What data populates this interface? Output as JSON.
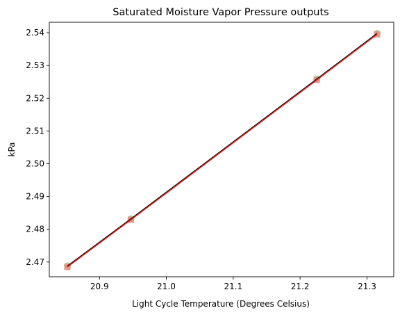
{
  "chart_data": {
    "type": "scatter",
    "title": "Saturated Moisture Vapor Pressure outputs",
    "xlabel": "Light Cycle Temperature (Degrees Celsius)",
    "ylabel": "kPa",
    "xlim": [
      20.825,
      21.34
    ],
    "ylim": [
      2.4655,
      2.5432
    ],
    "xticks": [
      "20.9",
      "21.0",
      "21.1",
      "21.2",
      "21.3"
    ],
    "yticks": [
      "2.47",
      "2.48",
      "2.49",
      "2.50",
      "2.51",
      "2.52",
      "2.53",
      "2.54"
    ],
    "grid": false,
    "series": [
      {
        "kind": "scatter",
        "marker": "circle",
        "color": "#90d890",
        "x": [
          20.852,
          20.947,
          21.225,
          21.315
        ],
        "y": [
          2.4688,
          2.4832,
          2.5259,
          2.5398
        ]
      },
      {
        "kind": "scatter",
        "marker": "square",
        "color": "#f08a80",
        "x": [
          20.852,
          20.947,
          21.225,
          21.315
        ],
        "y": [
          2.4685,
          2.4829,
          2.5256,
          2.5395
        ]
      },
      {
        "kind": "line",
        "color": "#000000",
        "x": [
          20.852,
          20.947,
          21.225,
          21.315
        ],
        "y": [
          2.4688,
          2.4832,
          2.5259,
          2.5398
        ]
      },
      {
        "kind": "line",
        "color": "#d42020",
        "x": [
          20.852,
          20.947,
          21.225,
          21.315
        ],
        "y": [
          2.4685,
          2.4829,
          2.5256,
          2.5395
        ]
      }
    ]
  }
}
